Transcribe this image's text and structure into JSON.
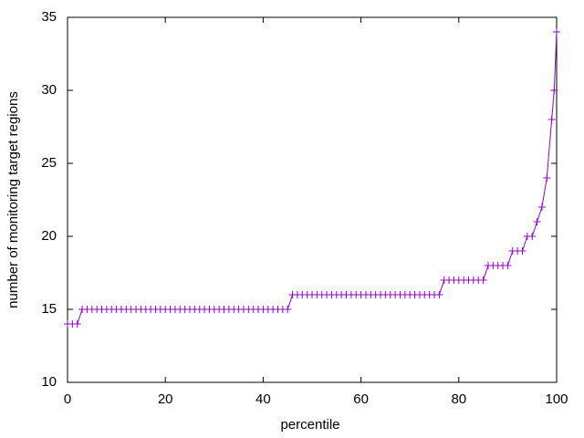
{
  "chart_data": {
    "type": "line",
    "xlabel": "percentile",
    "ylabel": "number of monitoring target regions",
    "x": [
      0,
      1,
      2,
      3,
      4,
      5,
      6,
      7,
      8,
      9,
      10,
      11,
      12,
      13,
      14,
      15,
      16,
      17,
      18,
      19,
      20,
      21,
      22,
      23,
      24,
      25,
      26,
      27,
      28,
      29,
      30,
      31,
      32,
      33,
      34,
      35,
      36,
      37,
      38,
      39,
      40,
      41,
      42,
      43,
      44,
      45,
      46,
      47,
      48,
      49,
      50,
      51,
      52,
      53,
      54,
      55,
      56,
      57,
      58,
      59,
      60,
      61,
      62,
      63,
      64,
      65,
      66,
      67,
      68,
      69,
      70,
      71,
      72,
      73,
      74,
      75,
      76,
      77,
      78,
      79,
      80,
      81,
      82,
      83,
      84,
      85,
      86,
      87,
      88,
      89,
      90,
      91,
      92,
      93,
      94,
      95,
      96,
      97,
      98,
      99,
      99.5,
      100
    ],
    "series": [
      {
        "color": "#9400d3",
        "values": [
          14,
          14,
          14,
          15,
          15,
          15,
          15,
          15,
          15,
          15,
          15,
          15,
          15,
          15,
          15,
          15,
          15,
          15,
          15,
          15,
          15,
          15,
          15,
          15,
          15,
          15,
          15,
          15,
          15,
          15,
          15,
          15,
          15,
          15,
          15,
          15,
          15,
          15,
          15,
          15,
          15,
          15,
          15,
          15,
          15,
          15,
          16,
          16,
          16,
          16,
          16,
          16,
          16,
          16,
          16,
          16,
          16,
          16,
          16,
          16,
          16,
          16,
          16,
          16,
          16,
          16,
          16,
          16,
          16,
          16,
          16,
          16,
          16,
          16,
          16,
          16,
          16,
          17,
          17,
          17,
          17,
          17,
          17,
          17,
          17,
          17,
          18,
          18,
          18,
          18,
          18,
          19,
          19,
          19,
          20,
          20,
          21,
          22,
          24,
          28,
          30,
          34
        ]
      }
    ],
    "xlim": [
      0,
      100
    ],
    "xticks": [
      0,
      20,
      40,
      60,
      80,
      100
    ],
    "ylim": [
      10,
      35
    ],
    "yticks": [
      10,
      15,
      20,
      25,
      30,
      35
    ],
    "grid": false,
    "markers": "plus"
  }
}
